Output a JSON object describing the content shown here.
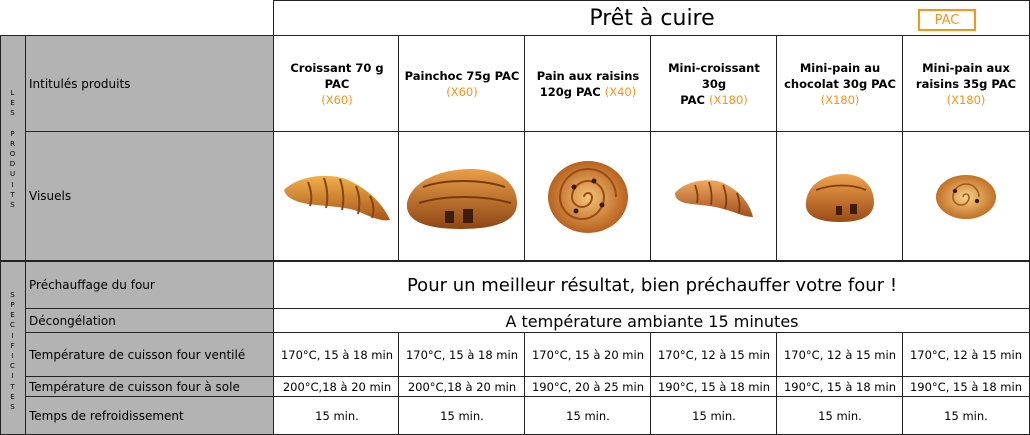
{
  "title": "Prêt à cuire",
  "badge": "PAC",
  "section_labels": {
    "produits": [
      "L",
      "E",
      "S",
      "",
      "P",
      "R",
      "O",
      "D",
      "U",
      "I",
      "T",
      "S"
    ],
    "specificites": [
      "S",
      "P",
      "E",
      "C",
      "I",
      "F",
      "I",
      "C",
      "I",
      "T",
      "E",
      "S"
    ]
  },
  "row_labels": {
    "intitules": "Intitulés produits",
    "visuels": "Visuels",
    "prechauffage": "Préchauffage du four",
    "decongelation": "Décongélation",
    "cuisson_ventile": "Température de cuisson four ventilé",
    "cuisson_sole": "Température de cuisson four à sole",
    "refroidissement": "Temps de refroidissement"
  },
  "prechauffage_text": "Pour un meilleur résultat, bien préchauffer votre four !",
  "decongelation_text": "A température ambiante 15 minutes",
  "products": [
    {
      "name_line1": "Croissant 70 g PAC",
      "name_line2": "",
      "qty": "(X60)",
      "qty_inline": false,
      "ventile": "170°C, 15 à 18 min",
      "sole": "200°C,18 à 20 min",
      "refroid": "15 min.",
      "visual": "croissant-image"
    },
    {
      "name_line1": "Painchoc 75g PAC",
      "name_line2": "",
      "qty": "(X60)",
      "qty_inline": false,
      "ventile": "170°C, 15 à 18 min",
      "sole": "200°C,18 à 20 min",
      "refroid": "15 min.",
      "visual": "pain-au-chocolat-image"
    },
    {
      "name_line1": "Pain aux raisins",
      "name_line2": "120g PAC",
      "qty": "(X40)",
      "qty_inline": true,
      "ventile": "170°C, 15 à 20 min",
      "sole": "190°C, 20 à 25 min",
      "refroid": "15 min.",
      "visual": "pain-aux-raisins-image"
    },
    {
      "name_line1": "Mini-croissant 30g",
      "name_line2": "PAC",
      "qty": "(X180)",
      "qty_inline": true,
      "ventile": "170°C, 12 à 15 min",
      "sole": "190°C, 15 à 18 min",
      "refroid": "15 min.",
      "visual": "mini-croissant-image"
    },
    {
      "name_line1": "Mini-pain au",
      "name_line2": "chocolat 30g PAC",
      "qty": "(X180)",
      "qty_inline": false,
      "ventile": "170°C, 12 à 15 min",
      "sole": "190°C, 15 à 18 min",
      "refroid": "15 min.",
      "visual": "mini-pain-au-chocolat-image"
    },
    {
      "name_line1": "Mini-pain aux",
      "name_line2": "raisins 35g PAC",
      "qty": "(X180)",
      "qty_inline": false,
      "ventile": "170°C, 12 à 15 min",
      "sole": "190°C, 15 à 18 min",
      "refroid": "15 min.",
      "visual": "mini-pain-aux-raisins-image"
    }
  ],
  "colors": {
    "accent": "#f7941d",
    "header_grey": "#b3b3b3",
    "border": "#222222"
  }
}
